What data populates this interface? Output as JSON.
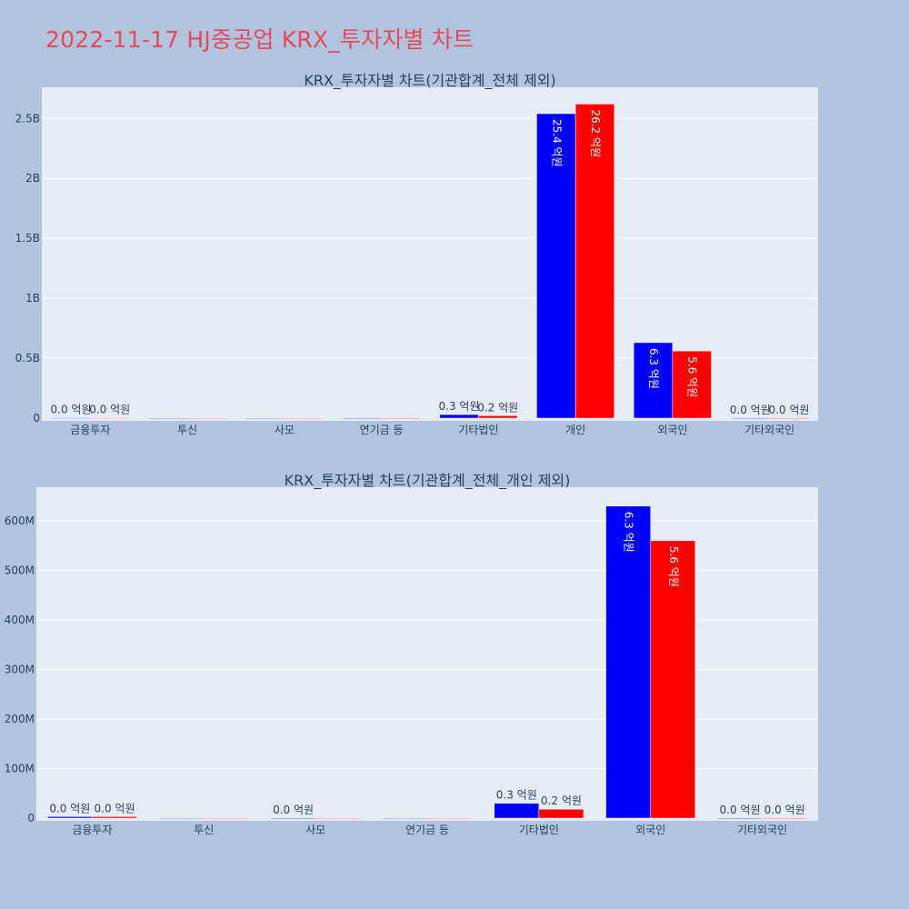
{
  "page_title": "2022-11-17 HJ중공업 KRX_투자자별 차트",
  "colors": {
    "buy": "#0000ff",
    "sell": "#ff0000",
    "plot_bg": "#e5ecf6",
    "page_bg": "#b0c4de",
    "title": "#e8495b"
  },
  "chart_data": [
    {
      "type": "bar",
      "title": "KRX_투자자별 차트(기관합계_전체 제외)",
      "categories": [
        "금융투자",
        "투신",
        "사모",
        "연기금 등",
        "기타법인",
        "개인",
        "외국인",
        "기타외국인"
      ],
      "series": [
        {
          "color": "#0000ff",
          "values": [
            3000000.0,
            0,
            0,
            500000.0,
            30000000.0,
            2540000000.0,
            630000000.0,
            500000.0
          ],
          "labels": [
            "0.0 억원",
            "",
            "",
            "",
            "0.3 억원",
            "25.4 억원",
            "6.3 억원",
            "0.0 억원"
          ]
        },
        {
          "color": "#ff0000",
          "values": [
            3000000.0,
            0,
            0,
            500000.0,
            20000000.0,
            2620000000.0,
            560000000.0,
            500000.0
          ],
          "labels": [
            "0.0 억원",
            "",
            "",
            "",
            "0.2 억원",
            "26.2 억원",
            "5.6 억원",
            "0.0 억원"
          ]
        }
      ],
      "yticks": [
        0,
        500000000.0,
        1000000000.0,
        1500000000.0,
        2000000000.0,
        2500000000.0
      ],
      "ytick_labels": [
        "0",
        "0.5B",
        "1B",
        "1.5B",
        "2B",
        "2.5B"
      ],
      "ylim": [
        0,
        2760000000.0
      ],
      "grid": true
    },
    {
      "type": "bar",
      "title": "KRX_투자자별 차트(기관합계_전체_개인 제외)",
      "categories": [
        "금융투자",
        "투신",
        "사모",
        "연기금 등",
        "기타법인",
        "외국인",
        "기타외국인"
      ],
      "series": [
        {
          "color": "#0000ff",
          "values": [
            3000000.0,
            0,
            300000.0,
            0,
            30000000.0,
            630000000.0,
            300000.0
          ],
          "labels": [
            "0.0 억원",
            "",
            "0.0 억원",
            "",
            "0.3 억원",
            "6.3 억원",
            "0.0 억원"
          ]
        },
        {
          "color": "#ff0000",
          "values": [
            3000000.0,
            0,
            0,
            0,
            18000000.0,
            560000000.0,
            300000.0
          ],
          "labels": [
            "0.0 억원",
            "",
            "",
            "",
            "0.2 억원",
            "5.6 억원",
            "0.0 억원"
          ]
        }
      ],
      "yticks": [
        0,
        100000000.0,
        200000000.0,
        300000000.0,
        400000000.0,
        500000000.0,
        600000000.0
      ],
      "ytick_labels": [
        "0",
        "100M",
        "200M",
        "300M",
        "400M",
        "500M",
        "600M"
      ],
      "ylim": [
        0,
        668000000.0
      ],
      "grid": true
    }
  ]
}
